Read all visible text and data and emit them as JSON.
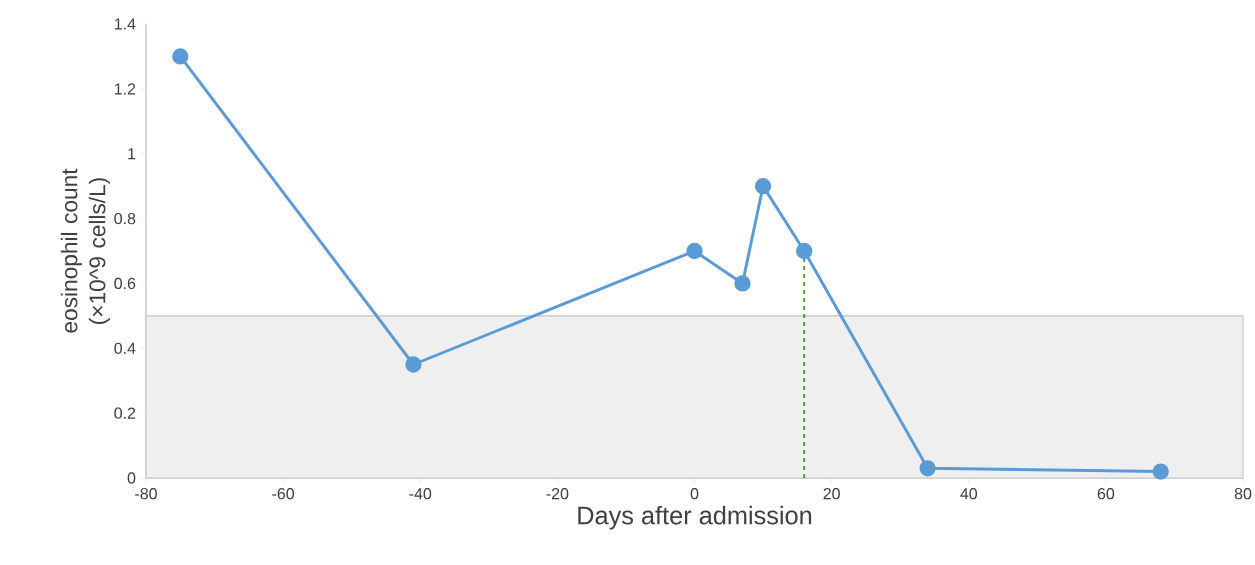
{
  "chart_data": {
    "type": "line",
    "xlabel": "Days after admission",
    "ylabel": "eosinophil count (×10^9 cells/L)",
    "x": [
      -75,
      -41,
      0,
      7,
      10,
      16,
      34,
      68
    ],
    "series": [
      {
        "color": "#5b9bd5",
        "values": [
          1.3,
          0.35,
          0.7,
          0.6,
          0.9,
          0.7,
          0.03,
          0.02
        ]
      }
    ],
    "xlim": [
      -80,
      80
    ],
    "xticks": [
      -80,
      -60,
      -40,
      -20,
      0,
      20,
      40,
      60,
      80
    ],
    "ylim": [
      0,
      1.4
    ],
    "yticks": [
      0,
      0.2,
      0.4,
      0.6,
      0.8,
      1,
      1.2,
      1.4
    ],
    "bands": [
      {
        "axis": "y",
        "from": 0,
        "to": 0.5,
        "color": "#efefef"
      }
    ],
    "ref_lines": [
      {
        "axis": "x",
        "value": 16,
        "color": "#4e9a2a",
        "line_style": "dashed"
      }
    ],
    "marker": "circle",
    "line_style": "solid"
  }
}
